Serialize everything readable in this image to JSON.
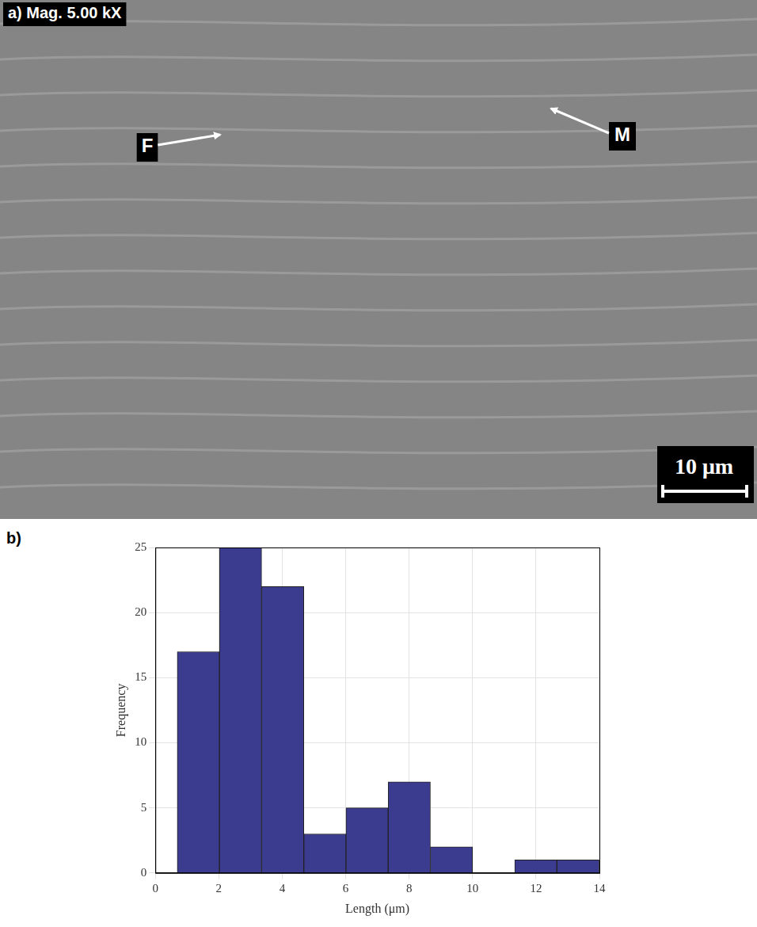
{
  "image_panel": {
    "label": "a)",
    "caption": "Mag. 5.00 kX",
    "markers": [
      "F",
      "M"
    ],
    "scale_bar": "10 μm"
  },
  "chart_data": {
    "type": "histogram",
    "panel_label": "b)",
    "x_label": "Length (μm)",
    "y_label": "Frequency",
    "bins": [
      0.69,
      2.02,
      3.35,
      4.68,
      6.01,
      7.34,
      8.67,
      10.0,
      11.33,
      12.66,
      13.99
    ],
    "counts": [
      17,
      25,
      22,
      3,
      5,
      7,
      2,
      0,
      1,
      1
    ],
    "color": "#3b3b8f",
    "xlim": [
      0,
      14
    ],
    "xticks": [
      0,
      2,
      4,
      6,
      8,
      10,
      12,
      14
    ],
    "ylim": [
      0,
      25
    ],
    "yticks": [
      0,
      5,
      10,
      15,
      20,
      25
    ],
    "grid": true
  }
}
